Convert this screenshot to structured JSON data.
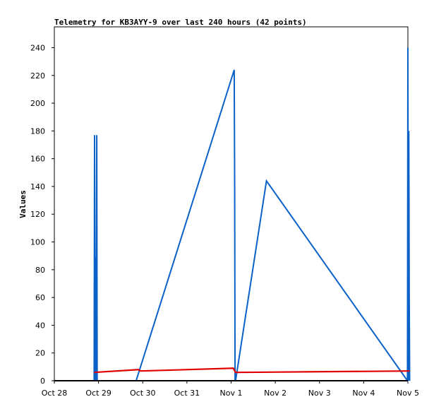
{
  "chart_data": {
    "type": "line",
    "title": "Telemetry for KB3AYY-9 over last 240 hours (42 points)",
    "ylabel": "Values",
    "xlabel": "",
    "x_range_days": [
      0,
      8
    ],
    "ylim": [
      0,
      255
    ],
    "x_ticks": [
      {
        "day": 0,
        "label": "Oct 28"
      },
      {
        "day": 1,
        "label": "Oct 29"
      },
      {
        "day": 2,
        "label": "Oct 30"
      },
      {
        "day": 3,
        "label": "Oct 31"
      },
      {
        "day": 4,
        "label": "Nov 1"
      },
      {
        "day": 5,
        "label": "Nov 2"
      },
      {
        "day": 6,
        "label": "Nov 3"
      },
      {
        "day": 7,
        "label": "Nov 4"
      },
      {
        "day": 8,
        "label": "Nov 5"
      }
    ],
    "y_ticks": [
      0,
      20,
      40,
      60,
      80,
      100,
      120,
      140,
      160,
      180,
      200,
      220,
      240
    ],
    "series": [
      {
        "color": "#0a62c8",
        "points": [
          [
            0.9,
            0
          ],
          [
            0.91,
            177
          ],
          [
            0.92,
            0
          ],
          [
            0.935,
            89
          ],
          [
            0.94,
            0
          ],
          [
            0.96,
            177
          ],
          [
            0.97,
            0
          ],
          [
            1.85,
            0
          ],
          [
            4.07,
            224
          ],
          [
            4.08,
            145
          ],
          [
            4.09,
            0
          ],
          [
            4.1,
            0
          ],
          [
            4.8,
            144
          ],
          [
            7.99,
            0
          ],
          [
            8.0,
            240
          ],
          [
            8.01,
            0
          ],
          [
            8.02,
            180
          ],
          [
            8.03,
            60
          ],
          [
            8.04,
            0
          ]
        ]
      },
      {
        "color": "#e00000",
        "points": [
          [
            0.9,
            6
          ],
          [
            1.9,
            8
          ],
          [
            1.95,
            7
          ],
          [
            4.05,
            9
          ],
          [
            4.1,
            6
          ],
          [
            8.04,
            7
          ]
        ]
      }
    ],
    "grid": false,
    "legend": "none"
  }
}
